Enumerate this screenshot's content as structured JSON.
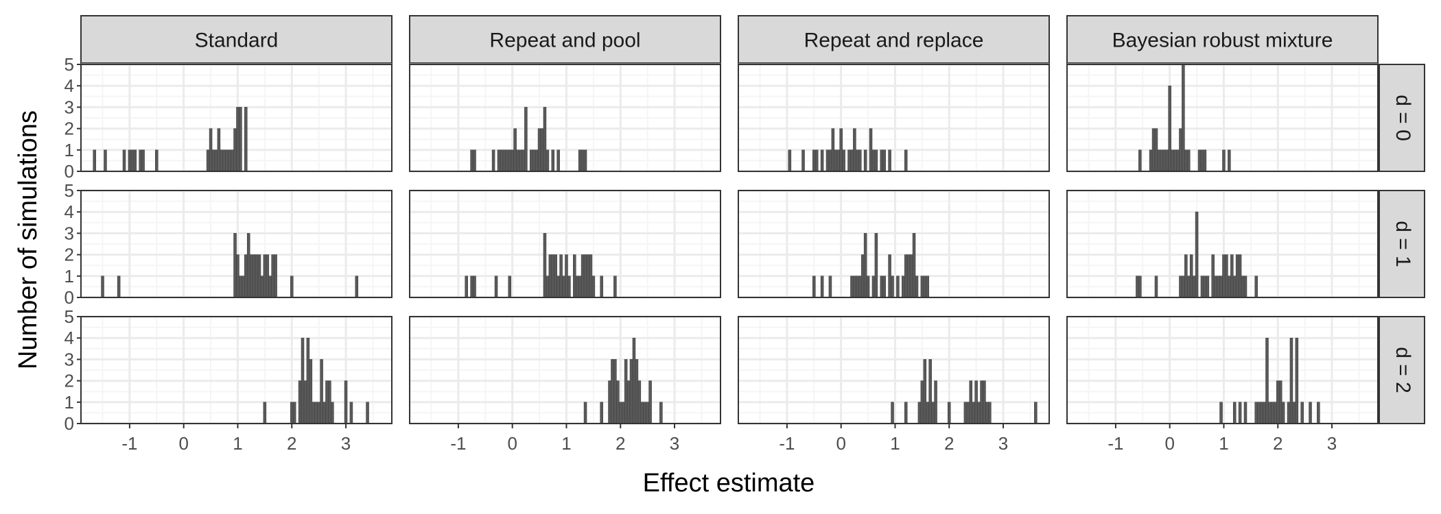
{
  "chart_data": {
    "type": "bar",
    "subtype": "histogram",
    "xlabel": "Effect estimate",
    "ylabel": "Number of simulations",
    "xlim": [
      -1.9,
      3.85
    ],
    "ylim": [
      0,
      5
    ],
    "x_ticks": [
      -1,
      0,
      1,
      2,
      3
    ],
    "y_ticks": [
      0,
      1,
      2,
      3,
      4,
      5
    ],
    "bin_width": 0.05,
    "grid": true,
    "columns": [
      "Standard",
      "Repeat and pool",
      "Repeat and replace",
      "Bayesian robust mixture"
    ],
    "rows": [
      "d = 0",
      "d = 1",
      "d = 2"
    ],
    "colors": {
      "bar_fill": "#595959",
      "bar_edge": "#404040",
      "strip_bg": "#d9d9d9",
      "grid_major": "#ebebeb",
      "grid_minor": "#f5f5f5",
      "panel_border": "#333333"
    },
    "panels": [
      {
        "column": "Standard",
        "row": "d = 0",
        "bars": [
          [
            -1.65,
            1
          ],
          [
            -1.45,
            1
          ],
          [
            -1.1,
            1
          ],
          [
            -1.0,
            1
          ],
          [
            -0.95,
            1
          ],
          [
            -0.9,
            1
          ],
          [
            -0.8,
            1
          ],
          [
            -0.75,
            1
          ],
          [
            -0.5,
            1
          ],
          [
            0.45,
            1
          ],
          [
            0.5,
            2
          ],
          [
            0.55,
            1
          ],
          [
            0.6,
            1
          ],
          [
            0.65,
            2
          ],
          [
            0.7,
            1
          ],
          [
            0.75,
            1
          ],
          [
            0.8,
            1
          ],
          [
            0.85,
            1
          ],
          [
            0.9,
            1
          ],
          [
            0.95,
            2
          ],
          [
            1.0,
            3
          ],
          [
            1.05,
            3
          ],
          [
            1.15,
            3
          ]
        ]
      },
      {
        "column": "Repeat and pool",
        "row": "d = 0",
        "bars": [
          [
            -0.75,
            1
          ],
          [
            -0.7,
            1
          ],
          [
            -0.35,
            1
          ],
          [
            -0.25,
            1
          ],
          [
            -0.2,
            1
          ],
          [
            -0.15,
            1
          ],
          [
            -0.1,
            1
          ],
          [
            -0.05,
            1
          ],
          [
            0.0,
            1
          ],
          [
            0.05,
            2
          ],
          [
            0.1,
            1
          ],
          [
            0.15,
            1
          ],
          [
            0.2,
            1
          ],
          [
            0.25,
            3
          ],
          [
            0.35,
            1
          ],
          [
            0.4,
            1
          ],
          [
            0.45,
            1
          ],
          [
            0.5,
            2
          ],
          [
            0.55,
            2
          ],
          [
            0.6,
            3
          ],
          [
            0.65,
            1
          ],
          [
            0.75,
            1
          ],
          [
            0.85,
            1
          ],
          [
            1.25,
            1
          ],
          [
            1.3,
            1
          ],
          [
            1.35,
            1
          ]
        ]
      },
      {
        "column": "Repeat and replace",
        "row": "d = 0",
        "bars": [
          [
            -0.95,
            1
          ],
          [
            -0.7,
            1
          ],
          [
            -0.5,
            1
          ],
          [
            -0.45,
            1
          ],
          [
            -0.35,
            1
          ],
          [
            -0.25,
            1
          ],
          [
            -0.2,
            1
          ],
          [
            -0.15,
            2
          ],
          [
            -0.1,
            1
          ],
          [
            -0.05,
            1
          ],
          [
            0.0,
            2
          ],
          [
            0.05,
            1
          ],
          [
            0.15,
            1
          ],
          [
            0.2,
            1
          ],
          [
            0.25,
            2
          ],
          [
            0.3,
            1
          ],
          [
            0.35,
            1
          ],
          [
            0.45,
            1
          ],
          [
            0.55,
            2
          ],
          [
            0.6,
            1
          ],
          [
            0.65,
            1
          ],
          [
            0.75,
            1
          ],
          [
            0.8,
            1
          ],
          [
            0.9,
            1
          ],
          [
            1.2,
            1
          ]
        ]
      },
      {
        "column": "Bayesian robust mixture",
        "row": "d = 0",
        "bars": [
          [
            -0.55,
            1
          ],
          [
            -0.35,
            1
          ],
          [
            -0.3,
            2
          ],
          [
            -0.25,
            2
          ],
          [
            -0.2,
            1
          ],
          [
            -0.15,
            1
          ],
          [
            -0.1,
            1
          ],
          [
            -0.05,
            1
          ],
          [
            0.0,
            4
          ],
          [
            0.05,
            1
          ],
          [
            0.1,
            1
          ],
          [
            0.15,
            1
          ],
          [
            0.2,
            2
          ],
          [
            0.25,
            5
          ],
          [
            0.3,
            1
          ],
          [
            0.35,
            1
          ],
          [
            0.55,
            1
          ],
          [
            0.6,
            1
          ],
          [
            0.65,
            1
          ],
          [
            1.0,
            1
          ],
          [
            1.1,
            1
          ]
        ]
      },
      {
        "column": "Standard",
        "row": "d = 1",
        "bars": [
          [
            -1.5,
            1
          ],
          [
            -1.2,
            1
          ],
          [
            0.95,
            3
          ],
          [
            1.0,
            2
          ],
          [
            1.05,
            1
          ],
          [
            1.1,
            1
          ],
          [
            1.15,
            2
          ],
          [
            1.2,
            3
          ],
          [
            1.25,
            2
          ],
          [
            1.3,
            2
          ],
          [
            1.35,
            2
          ],
          [
            1.4,
            2
          ],
          [
            1.45,
            1
          ],
          [
            1.5,
            2
          ],
          [
            1.55,
            2
          ],
          [
            1.6,
            1
          ],
          [
            1.65,
            2
          ],
          [
            1.7,
            2
          ],
          [
            2.0,
            1
          ],
          [
            3.2,
            1
          ]
        ]
      },
      {
        "column": "Repeat and pool",
        "row": "d = 1",
        "bars": [
          [
            -0.85,
            1
          ],
          [
            -0.75,
            1
          ],
          [
            -0.7,
            1
          ],
          [
            -0.3,
            1
          ],
          [
            -0.05,
            1
          ],
          [
            0.6,
            3
          ],
          [
            0.65,
            1
          ],
          [
            0.7,
            2
          ],
          [
            0.75,
            2
          ],
          [
            0.8,
            2
          ],
          [
            0.85,
            1
          ],
          [
            0.9,
            2
          ],
          [
            0.95,
            1
          ],
          [
            1.0,
            2
          ],
          [
            1.05,
            1
          ],
          [
            1.15,
            2
          ],
          [
            1.2,
            1
          ],
          [
            1.25,
            1
          ],
          [
            1.3,
            2
          ],
          [
            1.35,
            2
          ],
          [
            1.4,
            2
          ],
          [
            1.45,
            2
          ],
          [
            1.5,
            1
          ],
          [
            1.65,
            1
          ],
          [
            1.9,
            1
          ]
        ]
      },
      {
        "column": "Repeat and replace",
        "row": "d = 1",
        "bars": [
          [
            -0.5,
            1
          ],
          [
            -0.35,
            1
          ],
          [
            -0.2,
            1
          ],
          [
            0.2,
            1
          ],
          [
            0.25,
            1
          ],
          [
            0.3,
            1
          ],
          [
            0.35,
            1
          ],
          [
            0.4,
            2
          ],
          [
            0.45,
            3
          ],
          [
            0.5,
            1
          ],
          [
            0.6,
            1
          ],
          [
            0.65,
            3
          ],
          [
            0.75,
            1
          ],
          [
            0.8,
            1
          ],
          [
            0.9,
            2
          ],
          [
            0.95,
            1
          ],
          [
            1.05,
            1
          ],
          [
            1.15,
            1
          ],
          [
            1.2,
            2
          ],
          [
            1.25,
            2
          ],
          [
            1.3,
            2
          ],
          [
            1.35,
            3
          ],
          [
            1.4,
            1
          ],
          [
            1.5,
            1
          ],
          [
            1.55,
            1
          ],
          [
            1.6,
            1
          ]
        ]
      },
      {
        "column": "Bayesian robust mixture",
        "row": "d = 1",
        "bars": [
          [
            -0.6,
            1
          ],
          [
            -0.55,
            1
          ],
          [
            -0.25,
            1
          ],
          [
            0.2,
            1
          ],
          [
            0.25,
            1
          ],
          [
            0.3,
            2
          ],
          [
            0.35,
            1
          ],
          [
            0.4,
            2
          ],
          [
            0.45,
            1
          ],
          [
            0.5,
            4
          ],
          [
            0.6,
            1
          ],
          [
            0.65,
            1
          ],
          [
            0.7,
            1
          ],
          [
            0.8,
            2
          ],
          [
            0.85,
            1
          ],
          [
            0.9,
            1
          ],
          [
            0.95,
            1
          ],
          [
            1.0,
            2
          ],
          [
            1.05,
            2
          ],
          [
            1.1,
            1
          ],
          [
            1.15,
            2
          ],
          [
            1.2,
            1
          ],
          [
            1.25,
            2
          ],
          [
            1.3,
            2
          ],
          [
            1.35,
            1
          ],
          [
            1.4,
            1
          ],
          [
            1.6,
            1
          ]
        ]
      },
      {
        "column": "Standard",
        "row": "d = 2",
        "bars": [
          [
            1.5,
            1
          ],
          [
            2.0,
            1
          ],
          [
            2.05,
            1
          ],
          [
            2.15,
            2
          ],
          [
            2.2,
            4
          ],
          [
            2.25,
            2
          ],
          [
            2.3,
            4
          ],
          [
            2.35,
            3
          ],
          [
            2.4,
            1
          ],
          [
            2.45,
            1
          ],
          [
            2.5,
            1
          ],
          [
            2.55,
            3
          ],
          [
            2.6,
            1
          ],
          [
            2.65,
            2
          ],
          [
            2.7,
            2
          ],
          [
            2.75,
            1
          ],
          [
            3.0,
            2
          ],
          [
            3.1,
            1
          ],
          [
            3.4,
            1
          ]
        ]
      },
      {
        "column": "Repeat and pool",
        "row": "d = 2",
        "bars": [
          [
            1.35,
            1
          ],
          [
            1.65,
            1
          ],
          [
            1.8,
            2
          ],
          [
            1.85,
            3
          ],
          [
            1.9,
            3
          ],
          [
            1.95,
            2
          ],
          [
            2.0,
            1
          ],
          [
            2.05,
            1
          ],
          [
            2.1,
            3
          ],
          [
            2.15,
            2
          ],
          [
            2.2,
            3
          ],
          [
            2.25,
            4
          ],
          [
            2.3,
            3
          ],
          [
            2.35,
            2
          ],
          [
            2.4,
            1
          ],
          [
            2.45,
            1
          ],
          [
            2.5,
            1
          ],
          [
            2.55,
            2
          ],
          [
            2.75,
            1
          ]
        ]
      },
      {
        "column": "Repeat and replace",
        "row": "d = 2",
        "bars": [
          [
            0.95,
            1
          ],
          [
            1.2,
            1
          ],
          [
            1.45,
            1
          ],
          [
            1.5,
            2
          ],
          [
            1.55,
            3
          ],
          [
            1.6,
            1
          ],
          [
            1.65,
            3
          ],
          [
            1.7,
            1
          ],
          [
            1.75,
            2
          ],
          [
            2.0,
            1
          ],
          [
            2.3,
            1
          ],
          [
            2.35,
            1
          ],
          [
            2.4,
            2
          ],
          [
            2.45,
            1
          ],
          [
            2.5,
            2
          ],
          [
            2.55,
            1
          ],
          [
            2.6,
            2
          ],
          [
            2.65,
            2
          ],
          [
            2.7,
            1
          ],
          [
            2.75,
            1
          ],
          [
            3.6,
            1
          ]
        ]
      },
      {
        "column": "Bayesian robust mixture",
        "row": "d = 2",
        "bars": [
          [
            0.95,
            1
          ],
          [
            1.2,
            1
          ],
          [
            1.3,
            1
          ],
          [
            1.4,
            1
          ],
          [
            1.6,
            1
          ],
          [
            1.65,
            1
          ],
          [
            1.7,
            1
          ],
          [
            1.75,
            1
          ],
          [
            1.8,
            4
          ],
          [
            1.85,
            1
          ],
          [
            1.9,
            1
          ],
          [
            1.95,
            1
          ],
          [
            2.0,
            2
          ],
          [
            2.05,
            2
          ],
          [
            2.1,
            1
          ],
          [
            2.2,
            1
          ],
          [
            2.25,
            4
          ],
          [
            2.3,
            1
          ],
          [
            2.35,
            4
          ],
          [
            2.45,
            1
          ],
          [
            2.6,
            1
          ],
          [
            2.75,
            1
          ]
        ]
      }
    ]
  }
}
